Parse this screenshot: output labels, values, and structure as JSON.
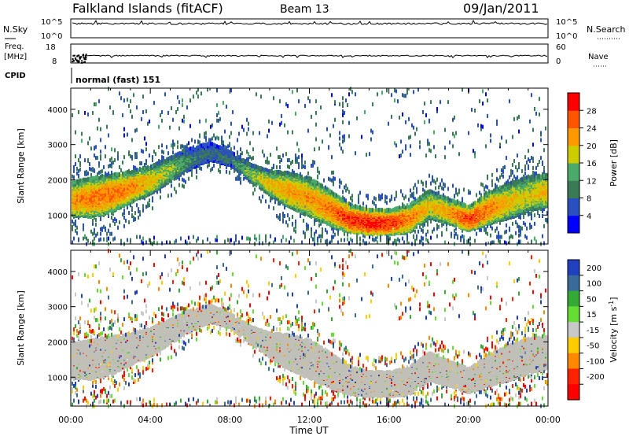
{
  "header": {
    "station": "Falkland Islands (fitACF)",
    "beam": "Beam 13",
    "date": "09/Jan/2011"
  },
  "side_labels": {
    "nsky": "N.Sky",
    "freq_line1": "Freq.",
    "freq_line2": "[MHz]",
    "cpid": "CPID",
    "nsearch": "N.Search",
    "nave": "Nave",
    "cpid_value": "normal (fast) 151"
  },
  "colors": {
    "power_scale": [
      "#0000ff",
      "#2a4fc0",
      "#3a7a55",
      "#4aaa6a",
      "#cccc00",
      "#ff9900",
      "#ff5500",
      "#ff0000"
    ],
    "velocity_scale": [
      "#2040c0",
      "#3a6a9a",
      "#33aa33",
      "#66dd33",
      "#c8c8c8",
      "#ffcc00",
      "#ff8800",
      "#ff2200",
      "#ff0000"
    ],
    "ground_scatter": "#c0c0b8"
  },
  "chart_data": [
    {
      "type": "line",
      "panel": "noise",
      "left_ticks": [
        "10^5",
        "10^0"
      ],
      "right_ticks": [
        "10^5",
        "10^0"
      ]
    },
    {
      "type": "scatter",
      "panel": "frequency",
      "left_ticks": [
        "18",
        "8"
      ],
      "right_ticks": [
        "60",
        "0"
      ],
      "freq_mhz_approx": 10
    },
    {
      "type": "heatmap",
      "panel": "power",
      "title": "",
      "xlabel": "Time UT",
      "ylabel": "Slant Range [km]",
      "x_ticks": [
        "00:00",
        "04:00",
        "08:00",
        "12:00",
        "16:00",
        "20:00",
        "00:00"
      ],
      "xlim_hours": [
        0,
        24
      ],
      "y_ticks": [
        1000,
        2000,
        3000,
        4000
      ],
      "ylim_km": [
        180,
        4600
      ],
      "colorbar": {
        "label": "Power [dB]",
        "ticks": [
          4,
          8,
          12,
          16,
          20,
          24,
          28
        ],
        "range": [
          0,
          32
        ]
      },
      "echo_band": {
        "t_hours": [
          0,
          1,
          2,
          3,
          4,
          5,
          6,
          7,
          8,
          9,
          10,
          11,
          12,
          13,
          14,
          15,
          16,
          17,
          18,
          19,
          20,
          21,
          22,
          23,
          24
        ],
        "center_km": [
          1450,
          1500,
          1600,
          1800,
          2000,
          2300,
          2600,
          2800,
          2600,
          2200,
          1900,
          1700,
          1500,
          1200,
          900,
          800,
          800,
          900,
          1300,
          1100,
          900,
          1200,
          1400,
          1600,
          1700
        ],
        "half_width_km": [
          500,
          550,
          550,
          450,
          400,
          350,
          300,
          250,
          200,
          250,
          350,
          500,
          550,
          500,
          400,
          350,
          350,
          400,
          400,
          350,
          350,
          450,
          500,
          500,
          450
        ],
        "peak_db": [
          22,
          24,
          24,
          23,
          20,
          16,
          10,
          8,
          10,
          16,
          20,
          22,
          22,
          24,
          28,
          30,
          28,
          24,
          20,
          22,
          28,
          24,
          20,
          18,
          22
        ]
      }
    },
    {
      "type": "heatmap",
      "panel": "velocity",
      "xlabel": "Time UT",
      "ylabel": "Slant Range [km]",
      "x_ticks": [
        "00:00",
        "04:00",
        "08:00",
        "12:00",
        "16:00",
        "20:00",
        "00:00"
      ],
      "xlim_hours": [
        0,
        24
      ],
      "y_ticks": [
        1000,
        2000,
        3000,
        4000
      ],
      "ylim_km": [
        180,
        4600
      ],
      "colorbar": {
        "label": "Velocity [m s-1]",
        "ticks": [
          200,
          100,
          50,
          15,
          -15,
          -50,
          -100,
          -200
        ],
        "range": [
          -250,
          250
        ]
      },
      "ground_scatter": true
    }
  ]
}
